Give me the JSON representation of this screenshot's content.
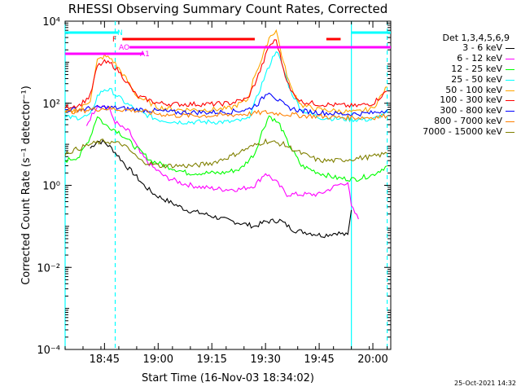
{
  "chart_data": {
    "type": "line",
    "title": "RHESSI Observing Summary Count Rates, Corrected",
    "xlabel": "Start Time (16-Nov-03 18:34:02)",
    "ylabel": "Corrected Count Rate (s⁻¹ detector⁻¹)",
    "yscale": "log",
    "ylim": [
      0.0001,
      10000
    ],
    "y_ticks": [
      {
        "value": 0.0001,
        "label": "10⁻⁴"
      },
      {
        "value": 0.01,
        "label": "10⁻²"
      },
      {
        "value": 1,
        "label": "10⁰"
      },
      {
        "value": 100,
        "label": "10²"
      },
      {
        "value": 10000,
        "label": "10⁴"
      }
    ],
    "xlim": [
      "18:34",
      "20:05"
    ],
    "x_ticks": [
      "18:45",
      "19:00",
      "19:15",
      "19:30",
      "19:45",
      "20:00"
    ],
    "legend_title": "Det 1,3,4,5,6,9",
    "legend_position": "right",
    "series": [
      {
        "name": "3 - 6 keV",
        "color": "#000000",
        "points": [
          [
            "18:41",
            8
          ],
          [
            "18:43",
            12
          ],
          [
            "18:45",
            11
          ],
          [
            "18:47",
            8
          ],
          [
            "18:49",
            5
          ],
          [
            "18:51",
            3
          ],
          [
            "18:53",
            2
          ],
          [
            "18:56",
            1
          ],
          [
            "18:59",
            0.6
          ],
          [
            "19:03",
            0.4
          ],
          [
            "19:08",
            0.25
          ],
          [
            "19:13",
            0.2
          ],
          [
            "19:18",
            0.15
          ],
          [
            "19:23",
            0.12
          ],
          [
            "19:27",
            0.1
          ],
          [
            "19:30",
            0.13
          ],
          [
            "19:34",
            0.14
          ],
          [
            "19:38",
            0.08
          ],
          [
            "19:42",
            0.07
          ],
          [
            "19:46",
            0.06
          ],
          [
            "19:50",
            0.07
          ],
          [
            "19:53",
            0.06
          ],
          [
            "19:54",
            0.25
          ]
        ]
      },
      {
        "name": "6 - 12 keV",
        "color": "#ff00ff",
        "points": [
          [
            "18:40",
            30
          ],
          [
            "18:43",
            90
          ],
          [
            "18:46",
            80
          ],
          [
            "18:48",
            35
          ],
          [
            "18:50",
            25
          ],
          [
            "18:52",
            20
          ],
          [
            "18:55",
            6
          ],
          [
            "18:58",
            3
          ],
          [
            "19:02",
            1.6
          ],
          [
            "19:07",
            1.1
          ],
          [
            "19:12",
            0.9
          ],
          [
            "19:18",
            0.8
          ],
          [
            "19:23",
            0.8
          ],
          [
            "19:27",
            1
          ],
          [
            "19:30",
            2
          ],
          [
            "19:33",
            1.2
          ],
          [
            "19:36",
            0.6
          ],
          [
            "19:40",
            0.6
          ],
          [
            "19:45",
            0.6
          ],
          [
            "19:50",
            1
          ],
          [
            "19:53",
            1.2
          ],
          [
            "19:54",
            0.3
          ],
          [
            "19:56",
            0.15
          ]
        ]
      },
      {
        "name": "12 - 25 keV",
        "color": "#00ff00",
        "points": [
          [
            "18:34",
            4
          ],
          [
            "18:38",
            5
          ],
          [
            "18:41",
            15
          ],
          [
            "18:43",
            50
          ],
          [
            "18:45",
            30
          ],
          [
            "18:47",
            25
          ],
          [
            "18:49",
            20
          ],
          [
            "18:51",
            14
          ],
          [
            "18:54",
            8
          ],
          [
            "18:58",
            4
          ],
          [
            "19:02",
            3
          ],
          [
            "19:08",
            2
          ],
          [
            "19:13",
            2
          ],
          [
            "19:18",
            2
          ],
          [
            "19:23",
            2.5
          ],
          [
            "19:27",
            6
          ],
          [
            "19:29",
            20
          ],
          [
            "19:31",
            50
          ],
          [
            "19:34",
            30
          ],
          [
            "19:36",
            12
          ],
          [
            "19:40",
            3
          ],
          [
            "19:45",
            2
          ],
          [
            "19:50",
            1.5
          ],
          [
            "19:55",
            1.4
          ],
          [
            "20:00",
            1.8
          ],
          [
            "20:04",
            3
          ]
        ]
      },
      {
        "name": "25 - 50 keV",
        "color": "#00ffff",
        "points": [
          [
            "18:34",
            45
          ],
          [
            "18:38",
            45
          ],
          [
            "18:41",
            50
          ],
          [
            "18:43",
            150
          ],
          [
            "18:45",
            220
          ],
          [
            "18:47",
            200
          ],
          [
            "18:49",
            140
          ],
          [
            "18:51",
            100
          ],
          [
            "18:55",
            60
          ],
          [
            "19:00",
            40
          ],
          [
            "19:05",
            35
          ],
          [
            "19:10",
            35
          ],
          [
            "19:15",
            35
          ],
          [
            "19:20",
            35
          ],
          [
            "19:25",
            40
          ],
          [
            "19:27",
            100
          ],
          [
            "19:29",
            300
          ],
          [
            "19:31",
            800
          ],
          [
            "19:33",
            2000
          ],
          [
            "19:35",
            700
          ],
          [
            "19:37",
            200
          ],
          [
            "19:40",
            70
          ],
          [
            "19:45",
            45
          ],
          [
            "19:50",
            42
          ],
          [
            "19:55",
            40
          ],
          [
            "20:00",
            40
          ],
          [
            "20:04",
            60
          ]
        ]
      },
      {
        "name": "50 - 100 keV",
        "color": "#ffa500",
        "points": [
          [
            "18:34",
            60
          ],
          [
            "18:38",
            70
          ],
          [
            "18:41",
            120
          ],
          [
            "18:43",
            1100
          ],
          [
            "18:45",
            1400
          ],
          [
            "18:47",
            1200
          ],
          [
            "18:49",
            700
          ],
          [
            "18:51",
            400
          ],
          [
            "18:54",
            150
          ],
          [
            "19:00",
            80
          ],
          [
            "19:05",
            70
          ],
          [
            "19:10",
            70
          ],
          [
            "19:15",
            70
          ],
          [
            "19:20",
            75
          ],
          [
            "19:25",
            120
          ],
          [
            "19:27",
            500
          ],
          [
            "19:29",
            1200
          ],
          [
            "19:31",
            4000
          ],
          [
            "19:33",
            6000
          ],
          [
            "19:35",
            1000
          ],
          [
            "19:37",
            250
          ],
          [
            "19:40",
            90
          ],
          [
            "19:45",
            70
          ],
          [
            "19:50",
            65
          ],
          [
            "19:55",
            60
          ],
          [
            "20:00",
            75
          ],
          [
            "20:04",
            250
          ]
        ]
      },
      {
        "name": "100 - 300 keV",
        "color": "#ff0000",
        "points": [
          [
            "18:34",
            80
          ],
          [
            "18:38",
            90
          ],
          [
            "18:41",
            150
          ],
          [
            "18:43",
            800
          ],
          [
            "18:45",
            1000
          ],
          [
            "18:47",
            900
          ],
          [
            "18:49",
            600
          ],
          [
            "18:51",
            350
          ],
          [
            "18:54",
            150
          ],
          [
            "19:00",
            100
          ],
          [
            "19:05",
            95
          ],
          [
            "19:10",
            95
          ],
          [
            "19:15",
            95
          ],
          [
            "19:20",
            100
          ],
          [
            "19:25",
            130
          ],
          [
            "19:27",
            300
          ],
          [
            "19:29",
            800
          ],
          [
            "19:31",
            2500
          ],
          [
            "19:33",
            3500
          ],
          [
            "19:35",
            700
          ],
          [
            "19:37",
            200
          ],
          [
            "19:40",
            110
          ],
          [
            "19:45",
            95
          ],
          [
            "19:50",
            90
          ],
          [
            "19:55",
            85
          ],
          [
            "20:00",
            100
          ],
          [
            "20:04",
            200
          ]
        ]
      },
      {
        "name": "300 - 800 keV",
        "color": "#0000ff",
        "points": [
          [
            "18:34",
            70
          ],
          [
            "18:38",
            70
          ],
          [
            "18:41",
            75
          ],
          [
            "18:45",
            80
          ],
          [
            "18:50",
            75
          ],
          [
            "18:55",
            70
          ],
          [
            "19:00",
            65
          ],
          [
            "19:05",
            60
          ],
          [
            "19:10",
            60
          ],
          [
            "19:15",
            60
          ],
          [
            "19:20",
            62
          ],
          [
            "19:25",
            70
          ],
          [
            "19:28",
            100
          ],
          [
            "19:31",
            200
          ],
          [
            "19:33",
            130
          ],
          [
            "19:36",
            80
          ],
          [
            "19:40",
            65
          ],
          [
            "19:45",
            60
          ],
          [
            "19:50",
            55
          ],
          [
            "19:55",
            55
          ],
          [
            "20:00",
            58
          ],
          [
            "20:04",
            70
          ]
        ]
      },
      {
        "name": "800 - 7000 keV",
        "color": "#ff8000",
        "points": [
          [
            "18:34",
            60
          ],
          [
            "18:38",
            65
          ],
          [
            "18:41",
            70
          ],
          [
            "18:45",
            75
          ],
          [
            "18:50",
            70
          ],
          [
            "18:55",
            65
          ],
          [
            "19:00",
            55
          ],
          [
            "19:05",
            50
          ],
          [
            "19:10",
            50
          ],
          [
            "19:15",
            50
          ],
          [
            "19:20",
            52
          ],
          [
            "19:25",
            55
          ],
          [
            "19:30",
            60
          ],
          [
            "19:35",
            55
          ],
          [
            "19:40",
            50
          ],
          [
            "19:45",
            48
          ],
          [
            "19:50",
            45
          ],
          [
            "19:55",
            45
          ],
          [
            "20:00",
            45
          ],
          [
            "20:04",
            50
          ]
        ]
      },
      {
        "name": "7000 - 15000 keV",
        "color": "#808000",
        "points": [
          [
            "18:34",
            6
          ],
          [
            "18:38",
            8
          ],
          [
            "18:41",
            10
          ],
          [
            "18:45",
            12
          ],
          [
            "18:50",
            10
          ],
          [
            "18:53",
            6
          ],
          [
            "18:55",
            4
          ],
          [
            "19:00",
            3
          ],
          [
            "19:05",
            3
          ],
          [
            "19:10",
            3
          ],
          [
            "19:15",
            3.5
          ],
          [
            "19:20",
            5
          ],
          [
            "19:25",
            8
          ],
          [
            "19:30",
            12
          ],
          [
            "19:35",
            10
          ],
          [
            "19:40",
            6
          ],
          [
            "19:45",
            4
          ],
          [
            "19:50",
            4
          ],
          [
            "19:55",
            4.5
          ],
          [
            "20:00",
            5
          ],
          [
            "20:04",
            6
          ]
        ]
      }
    ],
    "flag_bars": [
      {
        "label": "N",
        "color": "#00ffff",
        "segments": [
          [
            "18:34",
            "18:49"
          ],
          [
            "19:54",
            "20:05"
          ]
        ]
      },
      {
        "label": "F",
        "color": "#ff0000",
        "segments": [
          [
            "18:50",
            "19:27"
          ],
          [
            "19:47",
            "19:51"
          ]
        ]
      },
      {
        "label": "AO",
        "color": "#ff00ff",
        "segments": [
          [
            "18:52",
            "20:05"
          ]
        ]
      },
      {
        "label": "A1",
        "color": "#ff00ff",
        "segments": [
          [
            "18:34",
            "18:56"
          ]
        ]
      }
    ],
    "vertical_lines": [
      {
        "time": "18:34",
        "style": "solid",
        "color": "#00ffff"
      },
      {
        "time": "18:48",
        "style": "dashed",
        "color": "#00ffff"
      },
      {
        "time": "19:54",
        "style": "solid",
        "color": "#00ffff"
      },
      {
        "time": "20:04",
        "style": "dashed",
        "color": "#00ffff"
      }
    ]
  },
  "timestamp": "25-Oct-2021 14:32"
}
